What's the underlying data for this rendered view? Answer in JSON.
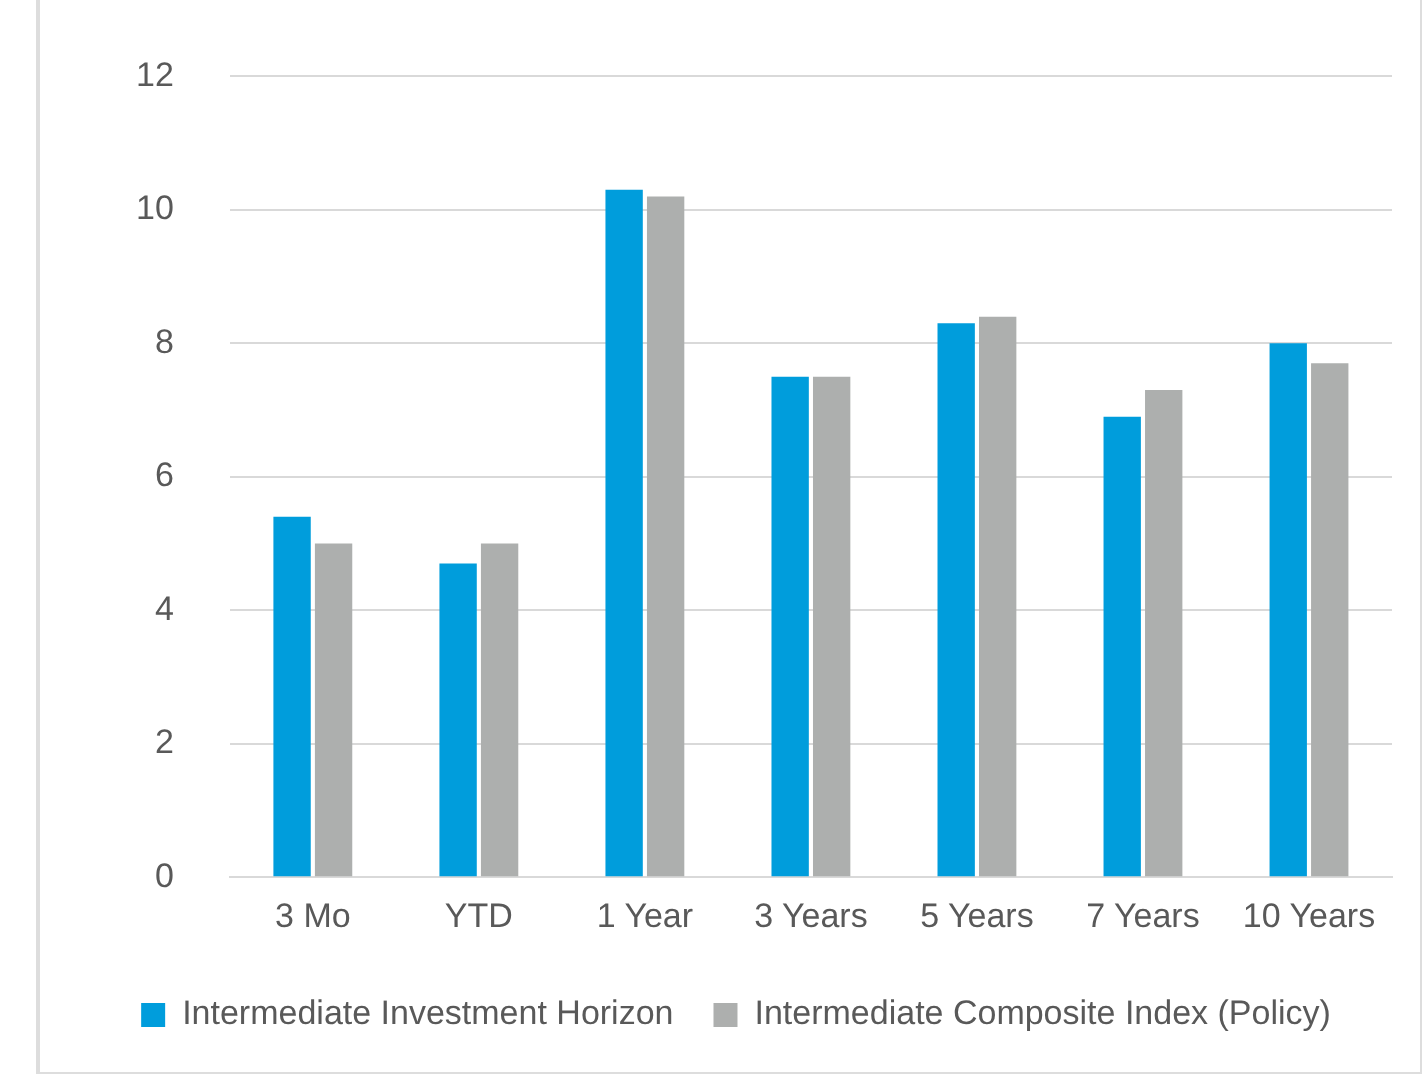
{
  "chart_data": {
    "type": "bar",
    "categories": [
      "3 Mo",
      "YTD",
      "1 Year",
      "3 Years",
      "5 Years",
      "7 Years",
      "10 Years"
    ],
    "series": [
      {
        "name": "Intermediate Investment Horizon",
        "color": "#009ddc",
        "values": [
          5.4,
          4.7,
          10.3,
          7.5,
          8.3,
          6.9,
          8.0
        ]
      },
      {
        "name": "Intermediate Composite Index (Policy)",
        "color": "#adafae",
        "values": [
          5.0,
          5.0,
          10.2,
          7.5,
          8.4,
          7.3,
          7.7
        ]
      }
    ],
    "ylim": [
      0,
      12
    ],
    "yticks": [
      0,
      2,
      4,
      6,
      8,
      10,
      12
    ],
    "grid": "y",
    "legend": "bottom"
  }
}
